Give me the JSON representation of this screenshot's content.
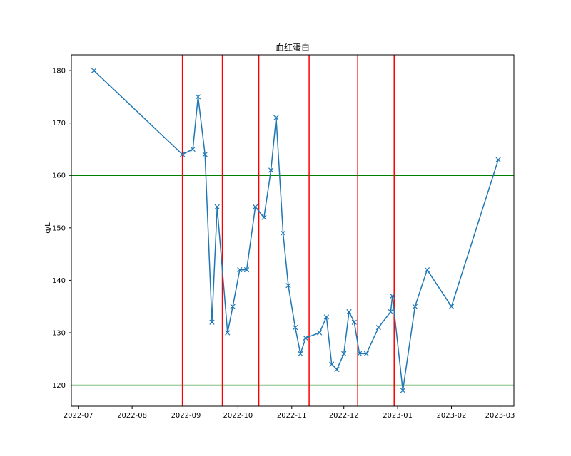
{
  "chart_data": {
    "type": "line",
    "title": "血红蛋白",
    "xlabel": "",
    "ylabel": "g/L",
    "x_axis": {
      "type": "date",
      "range": [
        "2022-06-27",
        "2023-03-09"
      ],
      "ticks": [
        {
          "date": "2022-07-01",
          "label": "2022-07"
        },
        {
          "date": "2022-08-01",
          "label": "2022-08"
        },
        {
          "date": "2022-09-01",
          "label": "2022-09"
        },
        {
          "date": "2022-10-01",
          "label": "2022-10"
        },
        {
          "date": "2022-11-01",
          "label": "2022-11"
        },
        {
          "date": "2022-12-01",
          "label": "2022-12"
        },
        {
          "date": "2023-01-01",
          "label": "2023-01"
        },
        {
          "date": "2023-02-01",
          "label": "2023-02"
        },
        {
          "date": "2023-03-01",
          "label": "2023-03"
        }
      ]
    },
    "y_axis": {
      "range": [
        116,
        183
      ],
      "ticks": [
        120,
        130,
        140,
        150,
        160,
        170,
        180
      ]
    },
    "series": [
      {
        "color": "#1f77b4",
        "marker": "x",
        "points": [
          {
            "x": "2022-07-10",
            "y": 180
          },
          {
            "x": "2022-08-30",
            "y": 164
          },
          {
            "x": "2022-09-05",
            "y": 165
          },
          {
            "x": "2022-09-08",
            "y": 175
          },
          {
            "x": "2022-09-12",
            "y": 164
          },
          {
            "x": "2022-09-16",
            "y": 132
          },
          {
            "x": "2022-09-19",
            "y": 154
          },
          {
            "x": "2022-09-25",
            "y": 130
          },
          {
            "x": "2022-09-28",
            "y": 135
          },
          {
            "x": "2022-10-02",
            "y": 142
          },
          {
            "x": "2022-10-06",
            "y": 142
          },
          {
            "x": "2022-10-11",
            "y": 154
          },
          {
            "x": "2022-10-16",
            "y": 152
          },
          {
            "x": "2022-10-20",
            "y": 161
          },
          {
            "x": "2022-10-23",
            "y": 171
          },
          {
            "x": "2022-10-27",
            "y": 149
          },
          {
            "x": "2022-10-30",
            "y": 139
          },
          {
            "x": "2022-11-03",
            "y": 131
          },
          {
            "x": "2022-11-06",
            "y": 126
          },
          {
            "x": "2022-11-09",
            "y": 129
          },
          {
            "x": "2022-11-17",
            "y": 130
          },
          {
            "x": "2022-11-21",
            "y": 133
          },
          {
            "x": "2022-11-24",
            "y": 124
          },
          {
            "x": "2022-11-27",
            "y": 123
          },
          {
            "x": "2022-12-01",
            "y": 126
          },
          {
            "x": "2022-12-04",
            "y": 134
          },
          {
            "x": "2022-12-07",
            "y": 132
          },
          {
            "x": "2022-12-10",
            "y": 126
          },
          {
            "x": "2022-12-14",
            "y": 126
          },
          {
            "x": "2022-12-21",
            "y": 131
          },
          {
            "x": "2022-12-28",
            "y": 134
          },
          {
            "x": "2022-12-29",
            "y": 137
          },
          {
            "x": "2023-01-04",
            "y": 119
          },
          {
            "x": "2023-01-11",
            "y": 135
          },
          {
            "x": "2023-01-18",
            "y": 142
          },
          {
            "x": "2023-02-01",
            "y": 135
          },
          {
            "x": "2023-02-28",
            "y": 163
          }
        ]
      }
    ],
    "reference_lines": {
      "horizontal": [
        {
          "y": 160,
          "color": "#008000"
        },
        {
          "y": 120,
          "color": "#008000"
        }
      ],
      "vertical": [
        {
          "x": "2022-08-30",
          "color": "#ff0000"
        },
        {
          "x": "2022-09-22",
          "color": "#ff0000"
        },
        {
          "x": "2022-10-13",
          "color": "#ff0000"
        },
        {
          "x": "2022-11-11",
          "color": "#ff0000"
        },
        {
          "x": "2022-12-09",
          "color": "#ff0000"
        },
        {
          "x": "2022-12-30",
          "color": "#ff0000"
        }
      ]
    },
    "grid": false,
    "legend": "none"
  }
}
